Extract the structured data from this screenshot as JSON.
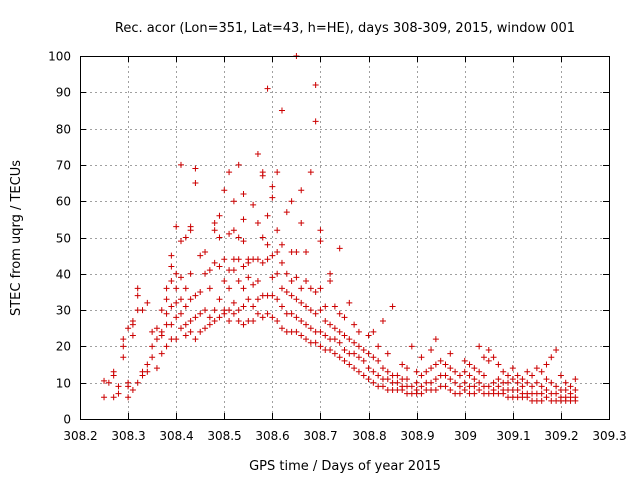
{
  "chart_data": {
    "type": "scatter",
    "title": "Rec. acor (Lon=351, Lat=43, h=HE), days 308-309, 2015, window 001",
    "xlabel": "GPS time / Days of year 2015",
    "ylabel": "STEC from uqrg / TECUs",
    "xlim": [
      308.2,
      309.3
    ],
    "ylim": [
      0,
      100
    ],
    "xticks": [
      "308.2",
      "308.3",
      "308.4",
      "308.5",
      "308.6",
      "308.7",
      "308.8",
      "308.9",
      "309",
      "309.1",
      "309.2",
      "309.3"
    ],
    "yticks": [
      "0",
      "10",
      "20",
      "30",
      "40",
      "50",
      "60",
      "70",
      "80",
      "90",
      "100"
    ],
    "grid": true,
    "marker": "+",
    "color": "#cc0000",
    "points": [
      [
        308.25,
        6
      ],
      [
        308.25,
        10.5
      ],
      [
        308.26,
        10
      ],
      [
        308.27,
        6
      ],
      [
        308.27,
        13
      ],
      [
        308.27,
        12
      ],
      [
        308.28,
        7
      ],
      [
        308.28,
        9
      ],
      [
        308.29,
        17
      ],
      [
        308.29,
        20
      ],
      [
        308.29,
        22
      ],
      [
        308.3,
        6
      ],
      [
        308.3,
        9
      ],
      [
        308.3,
        10
      ],
      [
        308.3,
        25
      ],
      [
        308.31,
        8
      ],
      [
        308.31,
        23
      ],
      [
        308.31,
        26
      ],
      [
        308.31,
        27
      ],
      [
        308.32,
        10
      ],
      [
        308.32,
        30
      ],
      [
        308.32,
        34
      ],
      [
        308.32,
        36
      ],
      [
        308.33,
        12
      ],
      [
        308.33,
        13
      ],
      [
        308.33,
        30
      ],
      [
        308.34,
        15
      ],
      [
        308.34,
        32
      ],
      [
        308.34,
        13
      ],
      [
        308.35,
        17
      ],
      [
        308.35,
        20
      ],
      [
        308.35,
        24
      ],
      [
        308.36,
        14
      ],
      [
        308.36,
        22
      ],
      [
        308.36,
        25
      ],
      [
        308.37,
        18
      ],
      [
        308.37,
        23
      ],
      [
        308.37,
        24
      ],
      [
        308.37,
        30
      ],
      [
        308.38,
        20
      ],
      [
        308.38,
        26
      ],
      [
        308.38,
        29
      ],
      [
        308.38,
        33
      ],
      [
        308.38,
        36
      ],
      [
        308.39,
        22
      ],
      [
        308.39,
        26
      ],
      [
        308.39,
        31
      ],
      [
        308.39,
        38
      ],
      [
        308.39,
        42
      ],
      [
        308.39,
        45
      ],
      [
        308.4,
        22
      ],
      [
        308.4,
        28
      ],
      [
        308.4,
        32
      ],
      [
        308.4,
        36
      ],
      [
        308.4,
        40
      ],
      [
        308.4,
        53
      ],
      [
        308.41,
        25
      ],
      [
        308.41,
        29
      ],
      [
        308.41,
        33
      ],
      [
        308.41,
        39
      ],
      [
        308.41,
        49
      ],
      [
        308.41,
        70
      ],
      [
        308.42,
        23
      ],
      [
        308.42,
        26
      ],
      [
        308.42,
        31
      ],
      [
        308.42,
        36
      ],
      [
        308.42,
        50
      ],
      [
        308.43,
        24
      ],
      [
        308.43,
        27
      ],
      [
        308.43,
        33
      ],
      [
        308.43,
        40
      ],
      [
        308.43,
        53
      ],
      [
        308.43,
        52
      ],
      [
        308.44,
        22
      ],
      [
        308.44,
        28
      ],
      [
        308.44,
        34
      ],
      [
        308.44,
        65
      ],
      [
        308.44,
        69
      ],
      [
        308.45,
        24
      ],
      [
        308.45,
        29
      ],
      [
        308.45,
        35
      ],
      [
        308.45,
        45
      ],
      [
        308.46,
        25
      ],
      [
        308.46,
        30
      ],
      [
        308.46,
        40
      ],
      [
        308.46,
        46
      ],
      [
        308.47,
        26
      ],
      [
        308.47,
        28
      ],
      [
        308.47,
        36
      ],
      [
        308.47,
        41
      ],
      [
        308.48,
        27
      ],
      [
        308.48,
        30
      ],
      [
        308.48,
        43
      ],
      [
        308.48,
        52
      ],
      [
        308.48,
        54
      ],
      [
        308.49,
        28
      ],
      [
        308.49,
        33
      ],
      [
        308.49,
        42
      ],
      [
        308.49,
        50
      ],
      [
        308.49,
        56
      ],
      [
        308.5,
        29
      ],
      [
        308.5,
        30
      ],
      [
        308.5,
        38
      ],
      [
        308.5,
        44
      ],
      [
        308.5,
        63
      ],
      [
        308.51,
        27
      ],
      [
        308.51,
        30
      ],
      [
        308.51,
        36
      ],
      [
        308.51,
        41
      ],
      [
        308.51,
        51
      ],
      [
        308.51,
        68
      ],
      [
        308.52,
        29
      ],
      [
        308.52,
        32
      ],
      [
        308.52,
        41
      ],
      [
        308.52,
        44
      ],
      [
        308.52,
        52
      ],
      [
        308.52,
        60
      ],
      [
        308.53,
        27
      ],
      [
        308.53,
        30
      ],
      [
        308.53,
        38
      ],
      [
        308.53,
        44
      ],
      [
        308.53,
        50
      ],
      [
        308.53,
        70
      ],
      [
        308.54,
        26
      ],
      [
        308.54,
        31
      ],
      [
        308.54,
        36
      ],
      [
        308.54,
        42
      ],
      [
        308.54,
        49
      ],
      [
        308.54,
        55
      ],
      [
        308.54,
        62
      ],
      [
        308.55,
        27
      ],
      [
        308.55,
        33
      ],
      [
        308.55,
        39
      ],
      [
        308.55,
        43
      ],
      [
        308.55,
        44
      ],
      [
        308.56,
        27
      ],
      [
        308.56,
        31
      ],
      [
        308.56,
        37
      ],
      [
        308.56,
        44
      ],
      [
        308.56,
        59
      ],
      [
        308.57,
        29
      ],
      [
        308.57,
        33
      ],
      [
        308.57,
        38
      ],
      [
        308.57,
        44
      ],
      [
        308.57,
        54
      ],
      [
        308.57,
        73
      ],
      [
        308.58,
        28
      ],
      [
        308.58,
        34
      ],
      [
        308.58,
        43
      ],
      [
        308.58,
        50
      ],
      [
        308.58,
        67
      ],
      [
        308.58,
        68
      ],
      [
        308.59,
        29
      ],
      [
        308.59,
        34
      ],
      [
        308.59,
        44
      ],
      [
        308.59,
        48
      ],
      [
        308.59,
        56
      ],
      [
        308.59,
        91
      ],
      [
        308.6,
        28
      ],
      [
        308.6,
        34
      ],
      [
        308.6,
        39
      ],
      [
        308.6,
        45
      ],
      [
        308.6,
        61
      ],
      [
        308.6,
        64
      ],
      [
        308.61,
        27
      ],
      [
        308.61,
        33
      ],
      [
        308.61,
        40
      ],
      [
        308.61,
        46
      ],
      [
        308.61,
        52
      ],
      [
        308.61,
        68
      ],
      [
        308.62,
        25
      ],
      [
        308.62,
        31
      ],
      [
        308.62,
        36
      ],
      [
        308.62,
        43
      ],
      [
        308.62,
        48
      ],
      [
        308.62,
        85
      ],
      [
        308.63,
        24
      ],
      [
        308.63,
        29
      ],
      [
        308.63,
        35
      ],
      [
        308.63,
        40
      ],
      [
        308.63,
        57
      ],
      [
        308.64,
        24
      ],
      [
        308.64,
        29
      ],
      [
        308.64,
        34
      ],
      [
        308.64,
        38
      ],
      [
        308.64,
        46
      ],
      [
        308.64,
        60
      ],
      [
        308.65,
        24
      ],
      [
        308.65,
        28
      ],
      [
        308.65,
        33
      ],
      [
        308.65,
        39
      ],
      [
        308.65,
        46
      ],
      [
        308.65,
        100
      ],
      [
        308.66,
        23
      ],
      [
        308.66,
        27
      ],
      [
        308.66,
        32
      ],
      [
        308.66,
        36
      ],
      [
        308.66,
        54
      ],
      [
        308.66,
        63
      ],
      [
        308.67,
        22
      ],
      [
        308.67,
        26
      ],
      [
        308.67,
        31
      ],
      [
        308.67,
        38
      ],
      [
        308.67,
        46
      ],
      [
        308.68,
        21
      ],
      [
        308.68,
        25
      ],
      [
        308.68,
        30
      ],
      [
        308.68,
        36
      ],
      [
        308.68,
        68
      ],
      [
        308.69,
        21
      ],
      [
        308.69,
        24
      ],
      [
        308.69,
        29
      ],
      [
        308.69,
        35
      ],
      [
        308.69,
        82
      ],
      [
        308.69,
        92
      ],
      [
        308.7,
        20
      ],
      [
        308.7,
        24
      ],
      [
        308.7,
        30
      ],
      [
        308.7,
        36
      ],
      [
        308.7,
        49
      ],
      [
        308.7,
        52
      ],
      [
        308.71,
        19
      ],
      [
        308.71,
        23
      ],
      [
        308.71,
        27
      ],
      [
        308.71,
        31
      ],
      [
        308.72,
        19
      ],
      [
        308.72,
        22
      ],
      [
        308.72,
        26
      ],
      [
        308.72,
        38
      ],
      [
        308.72,
        40
      ],
      [
        308.73,
        18
      ],
      [
        308.73,
        22
      ],
      [
        308.73,
        25
      ],
      [
        308.73,
        31
      ],
      [
        308.74,
        17
      ],
      [
        308.74,
        21
      ],
      [
        308.74,
        24
      ],
      [
        308.74,
        29
      ],
      [
        308.74,
        47
      ],
      [
        308.75,
        16
      ],
      [
        308.75,
        19
      ],
      [
        308.75,
        23
      ],
      [
        308.75,
        28
      ],
      [
        308.76,
        15
      ],
      [
        308.76,
        18
      ],
      [
        308.76,
        22
      ],
      [
        308.76,
        32
      ],
      [
        308.77,
        14
      ],
      [
        308.77,
        18
      ],
      [
        308.77,
        21
      ],
      [
        308.77,
        26
      ],
      [
        308.78,
        13
      ],
      [
        308.78,
        17
      ],
      [
        308.78,
        20
      ],
      [
        308.78,
        24
      ],
      [
        308.79,
        12
      ],
      [
        308.79,
        16
      ],
      [
        308.79,
        19
      ],
      [
        308.8,
        11
      ],
      [
        308.8,
        14
      ],
      [
        308.8,
        18
      ],
      [
        308.8,
        23
      ],
      [
        308.81,
        10
      ],
      [
        308.81,
        13
      ],
      [
        308.81,
        17
      ],
      [
        308.81,
        24
      ],
      [
        308.82,
        9
      ],
      [
        308.82,
        12
      ],
      [
        308.82,
        16
      ],
      [
        308.82,
        20
      ],
      [
        308.83,
        9
      ],
      [
        308.83,
        11
      ],
      [
        308.83,
        14
      ],
      [
        308.83,
        27
      ],
      [
        308.84,
        8
      ],
      [
        308.84,
        11
      ],
      [
        308.84,
        13
      ],
      [
        308.84,
        18
      ],
      [
        308.85,
        8
      ],
      [
        308.85,
        10
      ],
      [
        308.85,
        12
      ],
      [
        308.85,
        31
      ],
      [
        308.86,
        8
      ],
      [
        308.86,
        10
      ],
      [
        308.86,
        12
      ],
      [
        308.87,
        8
      ],
      [
        308.87,
        9
      ],
      [
        308.87,
        11
      ],
      [
        308.87,
        15
      ],
      [
        308.88,
        7
      ],
      [
        308.88,
        9
      ],
      [
        308.88,
        11
      ],
      [
        308.88,
        14
      ],
      [
        308.89,
        7
      ],
      [
        308.89,
        9
      ],
      [
        308.89,
        20
      ],
      [
        308.9,
        7
      ],
      [
        308.9,
        8
      ],
      [
        308.9,
        10
      ],
      [
        308.9,
        13
      ],
      [
        308.91,
        7
      ],
      [
        308.91,
        9
      ],
      [
        308.91,
        12
      ],
      [
        308.91,
        17
      ],
      [
        308.92,
        8
      ],
      [
        308.92,
        10
      ],
      [
        308.92,
        13
      ],
      [
        308.93,
        8
      ],
      [
        308.93,
        10
      ],
      [
        308.93,
        14
      ],
      [
        308.93,
        19
      ],
      [
        308.94,
        8
      ],
      [
        308.94,
        11
      ],
      [
        308.94,
        15
      ],
      [
        308.94,
        22
      ],
      [
        308.95,
        9
      ],
      [
        308.95,
        12
      ],
      [
        308.95,
        16
      ],
      [
        308.96,
        9
      ],
      [
        308.96,
        12
      ],
      [
        308.96,
        15
      ],
      [
        308.97,
        8
      ],
      [
        308.97,
        11
      ],
      [
        308.97,
        14
      ],
      [
        308.97,
        18
      ],
      [
        308.98,
        7
      ],
      [
        308.98,
        10
      ],
      [
        308.98,
        13
      ],
      [
        308.99,
        7
      ],
      [
        308.99,
        9
      ],
      [
        308.99,
        12
      ],
      [
        309.0,
        8
      ],
      [
        309.0,
        10
      ],
      [
        309.0,
        13
      ],
      [
        309.0,
        16
      ],
      [
        309.01,
        7
      ],
      [
        309.01,
        9
      ],
      [
        309.01,
        12
      ],
      [
        309.01,
        15
      ],
      [
        309.02,
        7
      ],
      [
        309.02,
        9
      ],
      [
        309.02,
        11
      ],
      [
        309.02,
        14
      ],
      [
        309.03,
        8
      ],
      [
        309.03,
        10
      ],
      [
        309.03,
        13
      ],
      [
        309.03,
        20
      ],
      [
        309.04,
        7
      ],
      [
        309.04,
        9
      ],
      [
        309.04,
        12
      ],
      [
        309.04,
        17
      ],
      [
        309.05,
        7
      ],
      [
        309.05,
        9
      ],
      [
        309.05,
        16
      ],
      [
        309.05,
        19
      ],
      [
        309.06,
        7
      ],
      [
        309.06,
        8
      ],
      [
        309.06,
        10
      ],
      [
        309.06,
        17
      ],
      [
        309.07,
        7
      ],
      [
        309.07,
        9
      ],
      [
        309.07,
        11
      ],
      [
        309.07,
        15
      ],
      [
        309.08,
        7
      ],
      [
        309.08,
        8
      ],
      [
        309.08,
        10
      ],
      [
        309.08,
        13
      ],
      [
        309.09,
        6
      ],
      [
        309.09,
        8
      ],
      [
        309.09,
        10
      ],
      [
        309.09,
        12
      ],
      [
        309.1,
        6
      ],
      [
        309.1,
        8
      ],
      [
        309.1,
        11
      ],
      [
        309.1,
        14
      ],
      [
        309.11,
        6
      ],
      [
        309.11,
        8
      ],
      [
        309.11,
        10
      ],
      [
        309.11,
        12
      ],
      [
        309.12,
        6
      ],
      [
        309.12,
        7
      ],
      [
        309.12,
        9
      ],
      [
        309.12,
        11
      ],
      [
        309.13,
        6
      ],
      [
        309.13,
        7
      ],
      [
        309.13,
        10
      ],
      [
        309.13,
        13
      ],
      [
        309.14,
        5
      ],
      [
        309.14,
        7
      ],
      [
        309.14,
        9
      ],
      [
        309.14,
        12
      ],
      [
        309.15,
        5
      ],
      [
        309.15,
        7
      ],
      [
        309.15,
        10
      ],
      [
        309.15,
        14
      ],
      [
        309.16,
        5
      ],
      [
        309.16,
        7
      ],
      [
        309.16,
        9
      ],
      [
        309.16,
        13
      ],
      [
        309.17,
        6
      ],
      [
        309.17,
        8
      ],
      [
        309.17,
        11
      ],
      [
        309.17,
        15
      ],
      [
        309.18,
        5
      ],
      [
        309.18,
        7
      ],
      [
        309.18,
        10
      ],
      [
        309.18,
        17
      ],
      [
        309.19,
        5
      ],
      [
        309.19,
        7
      ],
      [
        309.19,
        9
      ],
      [
        309.19,
        19
      ],
      [
        309.2,
        5
      ],
      [
        309.2,
        6
      ],
      [
        309.2,
        8
      ],
      [
        309.2,
        12
      ],
      [
        309.21,
        5
      ],
      [
        309.21,
        6
      ],
      [
        309.21,
        8
      ],
      [
        309.21,
        10
      ],
      [
        309.22,
        5
      ],
      [
        309.22,
        6
      ],
      [
        309.22,
        7
      ],
      [
        309.22,
        9
      ],
      [
        309.23,
        5
      ],
      [
        309.23,
        6
      ],
      [
        309.23,
        8
      ],
      [
        309.23,
        11
      ]
    ]
  }
}
